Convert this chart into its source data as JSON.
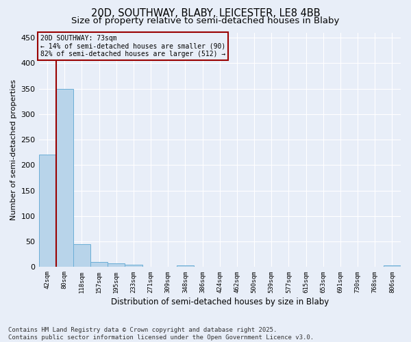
{
  "title1": "20D, SOUTHWAY, BLABY, LEICESTER, LE8 4BB",
  "title2": "Size of property relative to semi-detached houses in Blaby",
  "xlabel": "Distribution of semi-detached houses by size in Blaby",
  "ylabel": "Number of semi-detached properties",
  "bar_labels": [
    "42sqm",
    "80sqm",
    "118sqm",
    "157sqm",
    "195sqm",
    "233sqm",
    "271sqm",
    "309sqm",
    "348sqm",
    "386sqm",
    "424sqm",
    "462sqm",
    "500sqm",
    "539sqm",
    "577sqm",
    "615sqm",
    "653sqm",
    "691sqm",
    "730sqm",
    "768sqm",
    "806sqm"
  ],
  "bar_values": [
    220,
    350,
    45,
    10,
    7,
    5,
    0,
    0,
    3,
    0,
    0,
    0,
    0,
    0,
    0,
    0,
    0,
    0,
    0,
    0,
    3
  ],
  "bar_color": "#b8d4ea",
  "bar_edge_color": "#6aaed6",
  "bg_color": "#e8eef8",
  "grid_color": "#ffffff",
  "vline_color": "#990000",
  "annotation_text": "20D SOUTHWAY: 73sqm\n← 14% of semi-detached houses are smaller (90)\n82% of semi-detached houses are larger (512) →",
  "annotation_box_color": "#990000",
  "ylim": [
    0,
    460
  ],
  "yticks": [
    0,
    50,
    100,
    150,
    200,
    250,
    300,
    350,
    400,
    450
  ],
  "footer": "Contains HM Land Registry data © Crown copyright and database right 2025.\nContains public sector information licensed under the Open Government Licence v3.0.",
  "title_fontsize": 10.5,
  "subtitle_fontsize": 9.5,
  "footer_fontsize": 6.5
}
